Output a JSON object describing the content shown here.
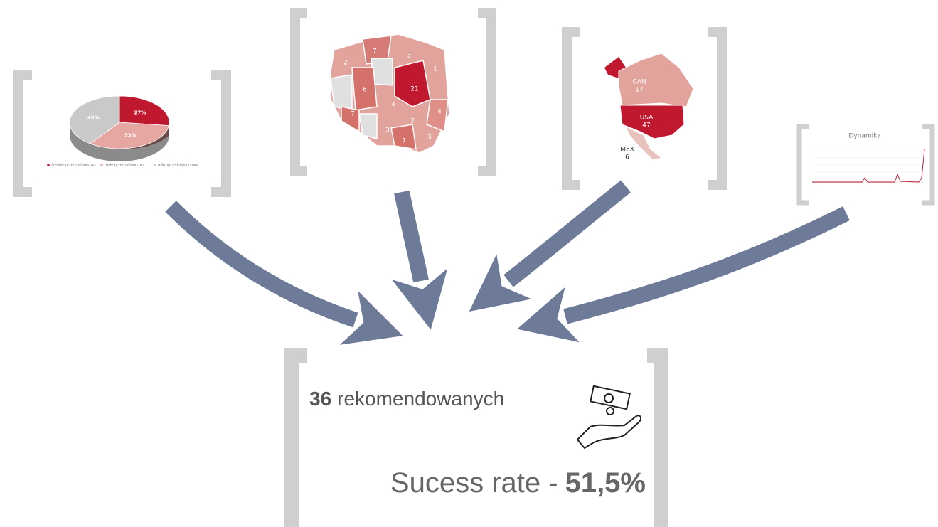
{
  "pie": {
    "values": [
      27,
      33,
      40
    ],
    "value_labels": [
      "27%",
      "33%",
      "40%"
    ],
    "colors": [
      "#c0182f",
      "#e6a7a2",
      "#c9c9c9"
    ],
    "legend": [
      "średnie przedsiębiorstwa",
      "małe przedsiębiorstwa",
      "mikroprzedsiębiorstwa"
    ]
  },
  "poland_map": {
    "labels": [
      "7",
      "3",
      "2",
      "1",
      "6",
      "21",
      "4",
      "7",
      "2",
      "3",
      "4",
      "7",
      "3"
    ]
  },
  "north_america_map": {
    "labels": [
      {
        "name": "CAN",
        "value": "17"
      },
      {
        "name": "USA",
        "value": "47"
      },
      {
        "name": "MEX",
        "value": "6"
      }
    ]
  },
  "trend_chart": {
    "title": "Dynamika"
  },
  "summary": {
    "count": "36",
    "count_label": "rekomendowanych",
    "rate_label": "Sucess rate -",
    "rate": "51,5%"
  }
}
